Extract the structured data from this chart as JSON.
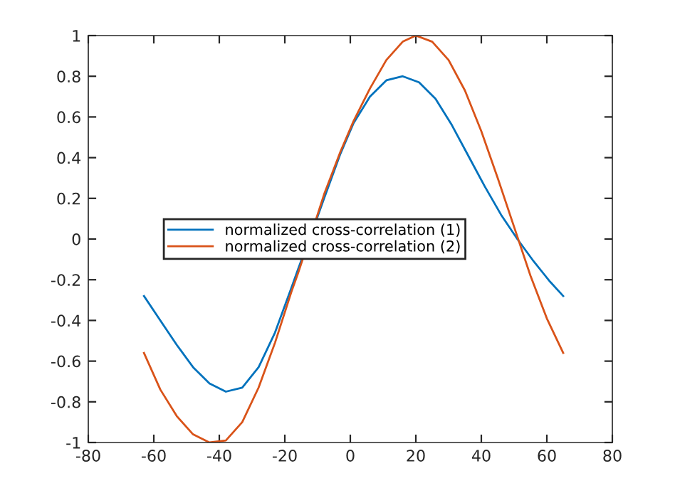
{
  "chart_data": {
    "type": "line",
    "xlim": [
      -80,
      80
    ],
    "ylim": [
      -1,
      1
    ],
    "xticks": [
      -80,
      -60,
      -40,
      -20,
      0,
      20,
      40,
      60,
      80
    ],
    "yticks": [
      -1,
      -0.8,
      -0.6,
      -0.4,
      -0.2,
      0,
      0.2,
      0.4,
      0.6,
      0.8,
      1
    ],
    "grid": false,
    "legend": "center left",
    "marker": "none",
    "line_style": "solid",
    "series": [
      {
        "name": "normalized cross-correlation (1)",
        "color": "#0072bd",
        "x": [
          -63,
          -58,
          -53,
          -48,
          -43,
          -38,
          -33,
          -28,
          -23,
          -18,
          -16,
          -10,
          -8,
          -3,
          1,
          6,
          11,
          16,
          21,
          26,
          31,
          36,
          41,
          46,
          51,
          56,
          61,
          65
        ],
        "values": [
          -0.28,
          -0.4,
          -0.52,
          -0.63,
          -0.71,
          -0.75,
          -0.73,
          -0.63,
          -0.46,
          -0.24,
          -0.15,
          0.11,
          0.2,
          0.42,
          0.57,
          0.7,
          0.78,
          0.8,
          0.77,
          0.69,
          0.56,
          0.41,
          0.26,
          0.12,
          0.0,
          -0.11,
          -0.21,
          -0.28
        ]
      },
      {
        "name": "normalized cross-correlation (2)",
        "color": "#d95319",
        "x": [
          -63,
          -58,
          -53,
          -48,
          -43,
          -38,
          -33,
          -28,
          -23,
          -18,
          -16,
          -10,
          -8,
          -3,
          1,
          6,
          11,
          16,
          20,
          25,
          30,
          35,
          40,
          45,
          50,
          55,
          60,
          65
        ],
        "values": [
          -0.56,
          -0.74,
          -0.87,
          -0.96,
          -1.0,
          -0.99,
          -0.9,
          -0.73,
          -0.51,
          -0.26,
          -0.17,
          0.12,
          0.22,
          0.43,
          0.58,
          0.74,
          0.88,
          0.97,
          1.0,
          0.97,
          0.88,
          0.73,
          0.53,
          0.3,
          0.06,
          -0.18,
          -0.39,
          -0.56
        ]
      }
    ]
  }
}
